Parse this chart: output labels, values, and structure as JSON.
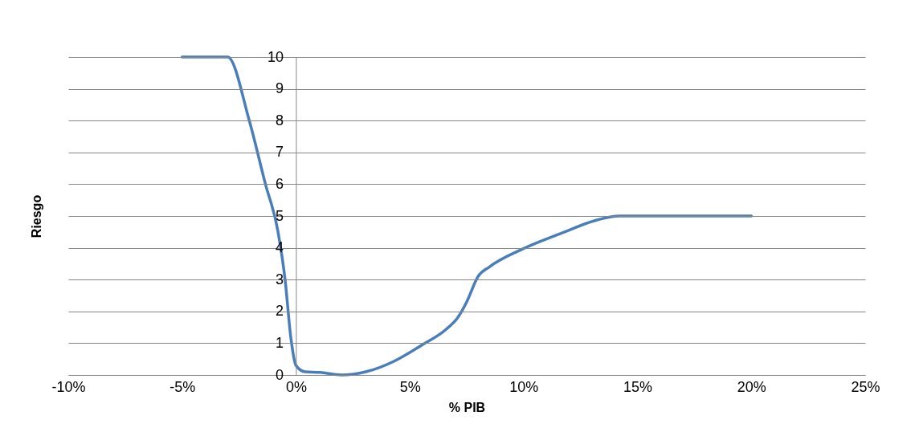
{
  "chart_data": {
    "type": "line",
    "xlabel": "% PIB",
    "ylabel": "Riesgo",
    "x": [
      -5,
      -3.8,
      -3,
      -2.05,
      -1.34,
      -0.8,
      -0.47,
      -0.23,
      0,
      0.4,
      1.05,
      2,
      3.07,
      4.3,
      5.5,
      6.6,
      7.1,
      7.5,
      8,
      8.5,
      9.95,
      11.7,
      13.1,
      14.2,
      15.2,
      20
    ],
    "series": [
      {
        "color": "#4a7ebb",
        "values": [
          10,
          10,
          10,
          8,
          6,
          4.55,
          2.95,
          1.2,
          0.3,
          0.1,
          0.08,
          0,
          0.1,
          0.43,
          0.93,
          1.44,
          1.8,
          2.3,
          3.1,
          3.4,
          3.96,
          4.47,
          4.85,
          5,
          5,
          5
        ]
      }
    ],
    "xlim": [
      -10,
      25
    ],
    "xticks": [
      {
        "value": -10,
        "label": "-10%"
      },
      {
        "value": -5,
        "label": "-5%"
      },
      {
        "value": 0,
        "label": "0%"
      },
      {
        "value": 5,
        "label": "5%"
      },
      {
        "value": 10,
        "label": "10%"
      },
      {
        "value": 15,
        "label": "15%"
      },
      {
        "value": 20,
        "label": "20%"
      },
      {
        "value": 25,
        "label": "25%"
      }
    ],
    "ylim": [
      0,
      10
    ],
    "yticks": [
      0,
      1,
      2,
      3,
      4,
      5,
      6,
      7,
      8,
      9,
      10
    ],
    "grid": "y",
    "marker": "none",
    "line_style": "solid"
  }
}
